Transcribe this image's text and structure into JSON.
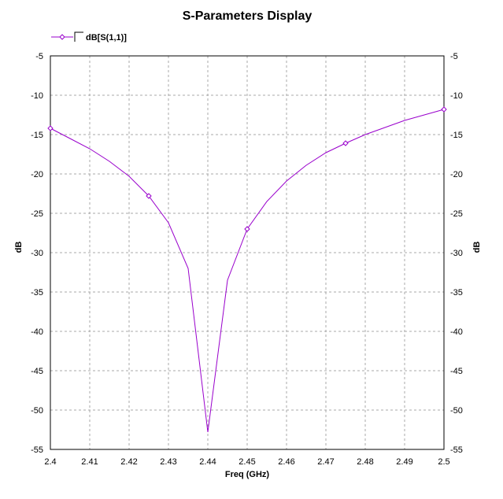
{
  "chart_data": {
    "type": "line",
    "title": "S-Parameters Display",
    "xlabel": "Freq (GHz)",
    "ylabel": "dB",
    "ylabel_right": "dB",
    "xlim": [
      2.4,
      2.5
    ],
    "ylim": [
      -55,
      -5
    ],
    "grid": true,
    "legend_position": "top-left",
    "x_ticks": [
      "2.4",
      "2.41",
      "2.42",
      "2.43",
      "2.44",
      "2.45",
      "2.46",
      "2.47",
      "2.48",
      "2.49",
      "2.5"
    ],
    "y_ticks": [
      "-5",
      "-10",
      "-15",
      "-20",
      "-25",
      "-30",
      "-35",
      "-40",
      "-45",
      "-50",
      "-55"
    ],
    "series": [
      {
        "name": "dB[S(1,1)]",
        "color": "#9900cc",
        "x": [
          2.4,
          2.405,
          2.41,
          2.415,
          2.42,
          2.425,
          2.43,
          2.435,
          2.44,
          2.445,
          2.45,
          2.455,
          2.46,
          2.465,
          2.47,
          2.475,
          2.48,
          2.485,
          2.49,
          2.495,
          2.5
        ],
        "y": [
          -14.2,
          -15.5,
          -16.8,
          -18.4,
          -20.3,
          -22.8,
          -26.2,
          -32.0,
          -52.8,
          -33.5,
          -27.0,
          -23.5,
          -20.9,
          -18.9,
          -17.3,
          -16.1,
          -15.0,
          -14.1,
          -13.2,
          -12.5,
          -11.8
        ],
        "markers_x": [
          2.4,
          2.425,
          2.45,
          2.475,
          2.5
        ],
        "markers_y": [
          -14.2,
          -22.8,
          -27.0,
          -16.1,
          -11.8
        ]
      }
    ]
  }
}
